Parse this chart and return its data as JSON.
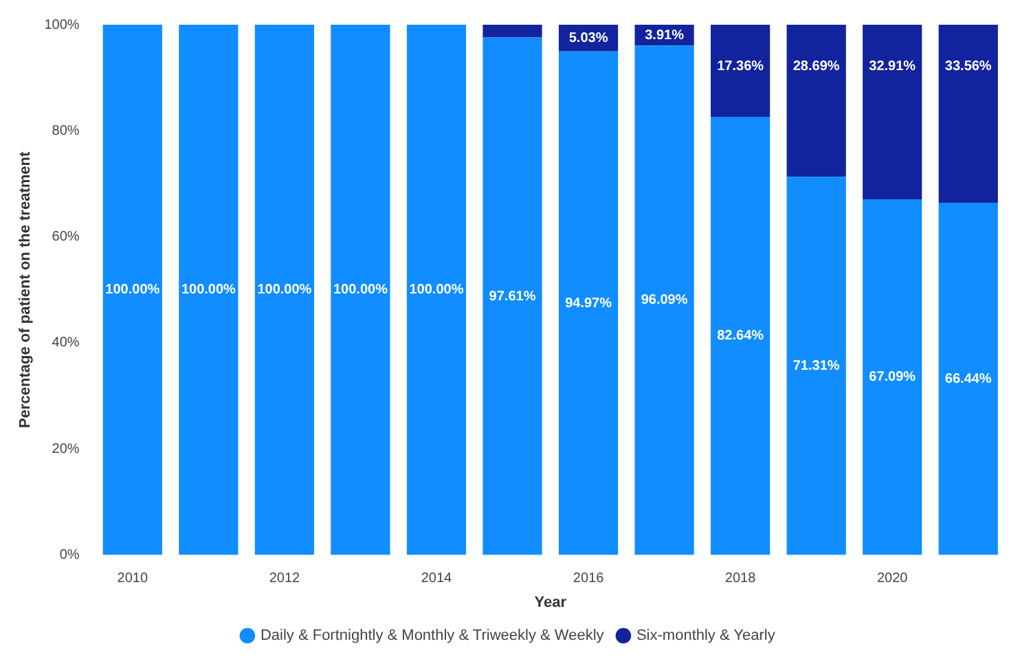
{
  "chart_data": {
    "type": "bar",
    "stacked": true,
    "xlabel": "Year",
    "ylabel": "Percentage of patient on the treatment",
    "categories": [
      "2010",
      null,
      "2012",
      null,
      "2014",
      null,
      "2016",
      null,
      "2018",
      null,
      "2020",
      null
    ],
    "series": [
      {
        "name": "Daily & Fortnightly & Monthly & Triweekly & Weekly",
        "color": "#118dff",
        "values": [
          100,
          100,
          100,
          100,
          100,
          97.61,
          94.97,
          96.09,
          82.64,
          71.31,
          67.09,
          66.44
        ],
        "value_labels": [
          "100.00%",
          "100.00%",
          "100.00%",
          "100.00%",
          "100.00%",
          "97.61%",
          "94.97%",
          "96.09%",
          "82.64%",
          "71.31%",
          "67.09%",
          "66.44%"
        ]
      },
      {
        "name": "Six-monthly & Yearly",
        "color": "#12239e",
        "values": [
          null,
          null,
          null,
          null,
          null,
          2.39,
          5.03,
          3.91,
          17.36,
          28.69,
          32.91,
          33.56
        ],
        "value_labels": [
          null,
          null,
          null,
          null,
          null,
          null,
          "5.03%",
          "3.91%",
          "17.36%",
          "28.69%",
          "32.91%",
          "33.56%"
        ]
      }
    ],
    "ylim": [
      0,
      100
    ],
    "yticks": [
      {
        "value": 0,
        "label": "0%"
      },
      {
        "value": 20,
        "label": "20%"
      },
      {
        "value": 40,
        "label": "40%"
      },
      {
        "value": 60,
        "label": "60%"
      },
      {
        "value": 80,
        "label": "80%"
      },
      {
        "value": 100,
        "label": "100%"
      }
    ],
    "grid": false,
    "legend": "bottom",
    "marker": "circle"
  }
}
